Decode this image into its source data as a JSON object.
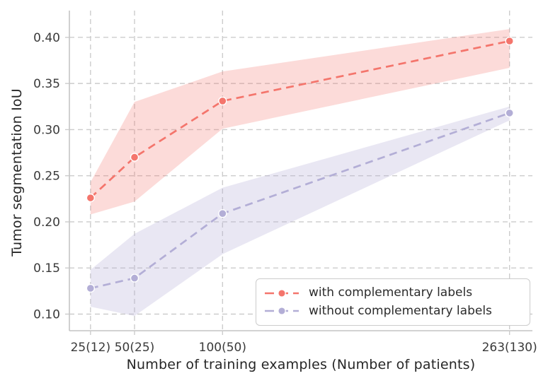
{
  "chart_data": {
    "type": "line",
    "title": "",
    "xlabel": "Number of training examples (Number of patients)",
    "ylabel": "Tumor segmentation IoU",
    "x": [
      25,
      50,
      100,
      263
    ],
    "x_tick_labels": [
      "25(12)",
      "50(25)",
      "100(50)",
      "263(130)"
    ],
    "y_ticks": [
      0.1,
      0.15,
      0.2,
      0.25,
      0.3,
      0.35,
      0.4
    ],
    "y_tick_labels": [
      "0.10",
      "0.15",
      "0.20",
      "0.25",
      "0.30",
      "0.35",
      "0.40"
    ],
    "xlim": [
      13,
      276
    ],
    "ylim": [
      0.082,
      0.429
    ],
    "grid": "dashed",
    "legend_position": "lower right",
    "series": [
      {
        "name": "with complementary labels",
        "color": "#f4756c",
        "band_alpha": 0.26,
        "line_style": "dashed",
        "marker": "circle",
        "values": [
          0.226,
          0.27,
          0.331,
          0.396
        ],
        "band_low": [
          0.208,
          0.222,
          0.301,
          0.367
        ],
        "band_high": [
          0.243,
          0.33,
          0.363,
          0.409
        ]
      },
      {
        "name": "without complementary labels",
        "color": "#b3aed6",
        "band_alpha": 0.29,
        "line_style": "dashed",
        "marker": "circle",
        "values": [
          0.128,
          0.139,
          0.209,
          0.318
        ],
        "band_low": [
          0.108,
          0.098,
          0.165,
          0.31
        ],
        "band_high": [
          0.148,
          0.187,
          0.237,
          0.325
        ]
      }
    ],
    "colors": {
      "background": "#ffffff",
      "grid": "#cccccc",
      "spine": "#c4c4c4",
      "tick_label": "#3a3a3a",
      "axis_label": "#262626",
      "legend_border": "#cccccc",
      "marker_edge": "#ffffff"
    }
  }
}
